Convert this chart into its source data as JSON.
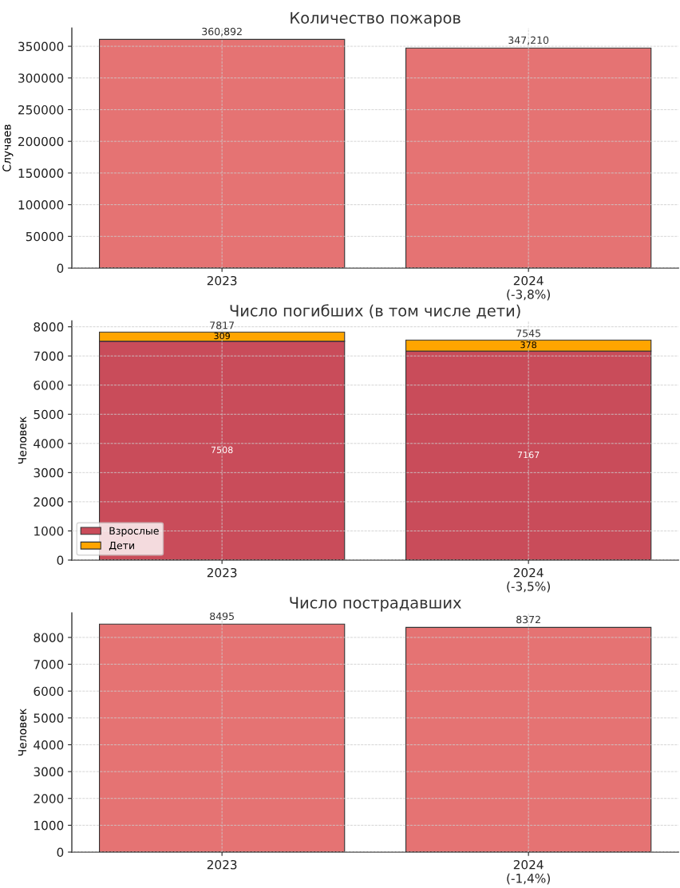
{
  "chart_data": [
    {
      "type": "bar",
      "title": "Количество пожаров",
      "ylabel": "Случаев",
      "categories": [
        "2023",
        "2024\n(-3,8%)"
      ],
      "values": [
        360892,
        347210
      ],
      "color": "#e57373",
      "value_labels": [
        "360,892",
        "347,210"
      ],
      "ylim": [
        0,
        379000
      ],
      "yticks": [
        0,
        50000,
        100000,
        150000,
        200000,
        250000,
        300000,
        350000
      ],
      "grid": true,
      "legend": false
    },
    {
      "type": "bar",
      "title": "Число погибших (в том числе дети)",
      "ylabel": "Человек",
      "categories": [
        "2023",
        "2024\n(-3,5%)"
      ],
      "stacked": true,
      "series": [
        {
          "name": "Взрослые",
          "color": "#c94c5a",
          "values": [
            7508,
            7167
          ]
        },
        {
          "name": "Дети",
          "color": "#ffa500",
          "values": [
            309,
            378
          ]
        }
      ],
      "totals": [
        "7817",
        "7545"
      ],
      "data_labels": true,
      "ylim": [
        0,
        8208
      ],
      "yticks": [
        0,
        1000,
        2000,
        3000,
        4000,
        5000,
        6000,
        7000,
        8000
      ],
      "grid": true,
      "legend": "bottom left"
    },
    {
      "type": "bar",
      "title": "Число пострадавших",
      "ylabel": "Человек",
      "categories": [
        "2023",
        "2024\n(-1,4%)"
      ],
      "values": [
        8495,
        8372
      ],
      "color": "#e57373",
      "data_labels": true,
      "ylim": [
        0,
        8920
      ],
      "yticks": [
        0,
        1000,
        2000,
        3000,
        4000,
        5000,
        6000,
        7000,
        8000
      ],
      "grid": true,
      "legend": false
    }
  ]
}
